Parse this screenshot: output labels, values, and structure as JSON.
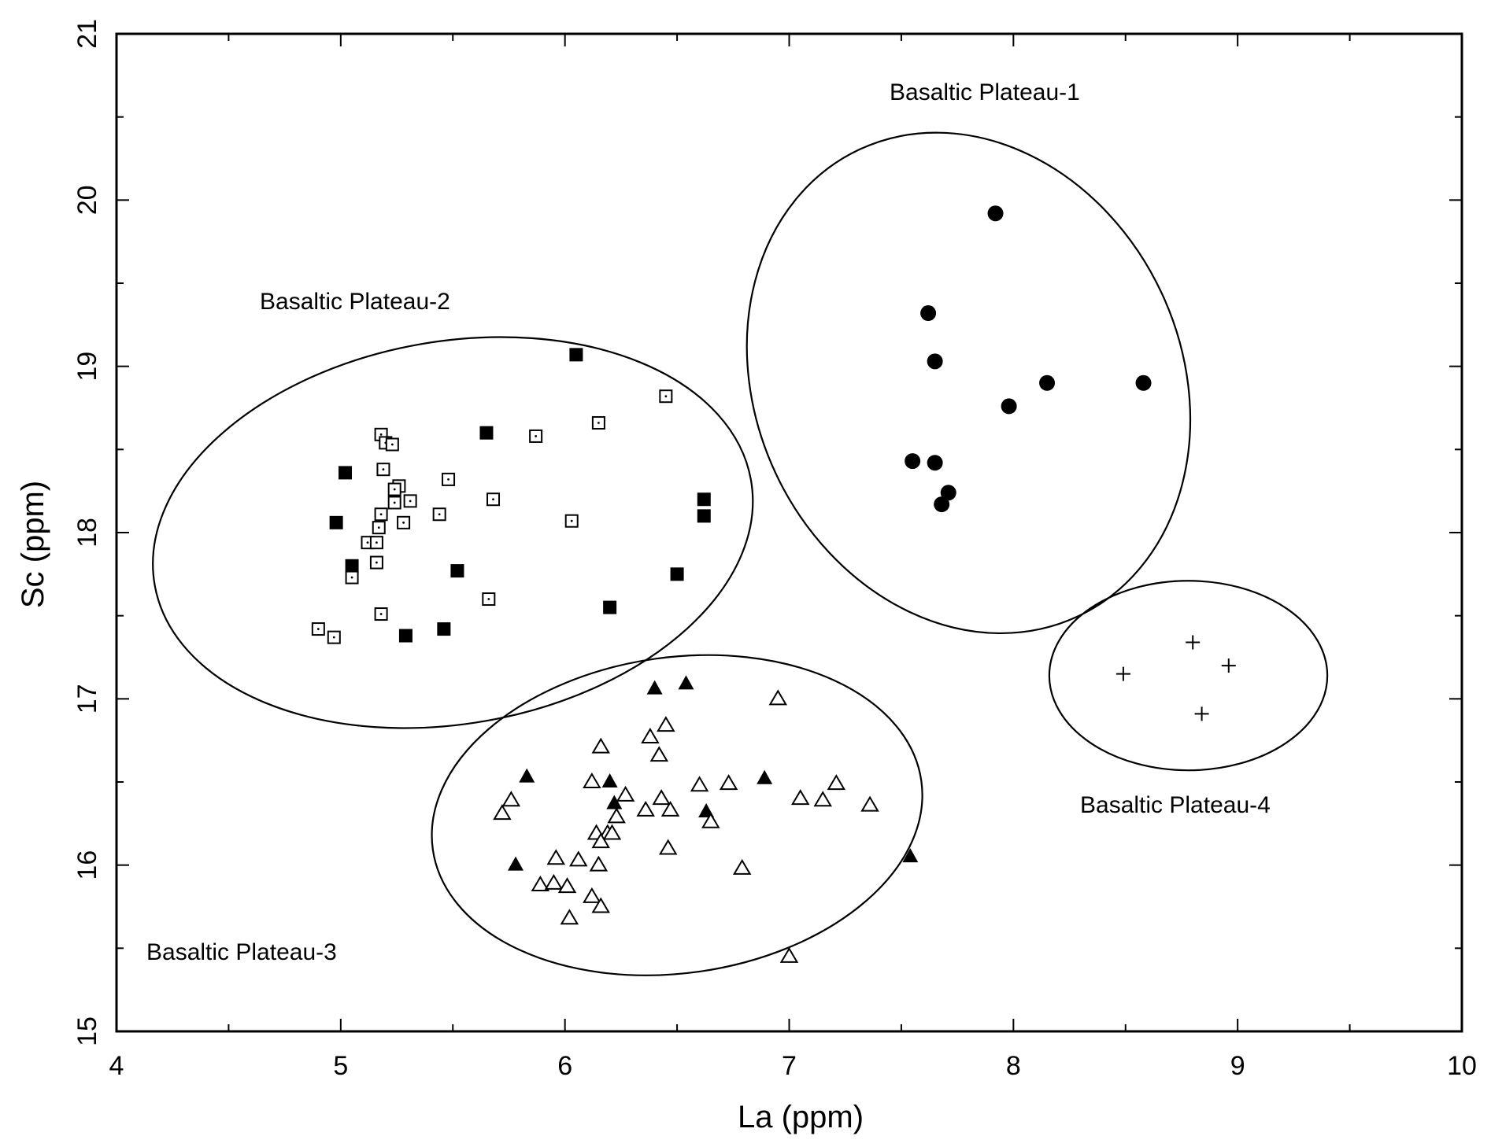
{
  "chart_data": {
    "type": "scatter",
    "xlabel": "La (ppm)",
    "ylabel": "Sc (ppm)",
    "xlim": [
      4,
      10
    ],
    "ylim": [
      15,
      21
    ],
    "xticks": [
      "4",
      "5",
      "6",
      "7",
      "8",
      "9",
      "10"
    ],
    "yticks": [
      "15",
      "16",
      "17",
      "18",
      "19",
      "20",
      "21"
    ],
    "grid": false,
    "legend": "none",
    "regions": [
      {
        "label": "Basaltic Plateau-1",
        "center": [
          7.8,
          18.9
        ],
        "radius_x": 0.95,
        "radius_y": 1.55,
        "rotation_deg": -25
      },
      {
        "label": "Basaltic Plateau-2",
        "center": [
          5.5,
          18.0
        ],
        "radius_x": 1.35,
        "radius_y": 1.15,
        "rotation_deg": -10
      },
      {
        "label": "Basaltic Plateau-3",
        "center": [
          6.5,
          16.3
        ],
        "radius_x": 1.1,
        "radius_y": 0.95,
        "rotation_deg": -8
      },
      {
        "label": "Basaltic Plateau-4",
        "center": [
          8.78,
          17.14
        ],
        "radius_x": 0.62,
        "radius_y": 0.57,
        "rotation_deg": 0
      }
    ],
    "series": [
      {
        "marker": "filled-circle",
        "region": "Basaltic Plateau-1",
        "points": [
          [
            7.92,
            19.92
          ],
          [
            7.62,
            19.32
          ],
          [
            7.65,
            19.03
          ],
          [
            8.15,
            18.9
          ],
          [
            8.58,
            18.9
          ],
          [
            7.98,
            18.76
          ],
          [
            7.55,
            18.43
          ],
          [
            7.65,
            18.42
          ],
          [
            7.71,
            18.24
          ],
          [
            7.68,
            18.17
          ]
        ]
      },
      {
        "marker": "filled-square",
        "region": "Basaltic Plateau-2",
        "points": [
          [
            6.05,
            19.07
          ],
          [
            5.65,
            18.6
          ],
          [
            5.02,
            18.36
          ],
          [
            6.62,
            18.2
          ],
          [
            6.62,
            18.1
          ],
          [
            4.98,
            18.06
          ],
          [
            5.05,
            17.8
          ],
          [
            5.52,
            17.77
          ],
          [
            6.5,
            17.75
          ],
          [
            6.2,
            17.55
          ],
          [
            5.46,
            17.42
          ],
          [
            5.29,
            17.38
          ]
        ]
      },
      {
        "marker": "open-square",
        "region": "Basaltic Plateau-2",
        "points": [
          [
            6.45,
            18.82
          ],
          [
            6.15,
            18.66
          ],
          [
            5.87,
            18.58
          ],
          [
            5.18,
            18.59
          ],
          [
            5.2,
            18.54
          ],
          [
            5.23,
            18.53
          ],
          [
            5.19,
            18.38
          ],
          [
            5.48,
            18.32
          ],
          [
            5.26,
            18.28
          ],
          [
            5.24,
            18.26
          ],
          [
            5.24,
            18.18
          ],
          [
            5.31,
            18.19
          ],
          [
            5.68,
            18.2
          ],
          [
            5.44,
            18.11
          ],
          [
            5.18,
            18.11
          ],
          [
            6.03,
            18.07
          ],
          [
            5.17,
            18.03
          ],
          [
            5.28,
            18.06
          ],
          [
            5.12,
            17.94
          ],
          [
            5.16,
            17.94
          ],
          [
            5.16,
            17.82
          ],
          [
            5.05,
            17.73
          ],
          [
            5.66,
            17.6
          ],
          [
            5.18,
            17.51
          ],
          [
            4.9,
            17.42
          ],
          [
            4.97,
            17.37
          ]
        ]
      },
      {
        "marker": "filled-triangle",
        "region": "Basaltic Plateau-3",
        "points": [
          [
            6.54,
            17.09
          ],
          [
            6.4,
            17.06
          ],
          [
            5.83,
            16.53
          ],
          [
            6.2,
            16.5
          ],
          [
            6.89,
            16.52
          ],
          [
            6.22,
            16.37
          ],
          [
            6.63,
            16.32
          ],
          [
            5.78,
            16.0
          ],
          [
            7.54,
            16.05
          ]
        ]
      },
      {
        "marker": "open-triangle",
        "region": "Basaltic Plateau-3",
        "points": [
          [
            6.95,
            17.0
          ],
          [
            6.45,
            16.84
          ],
          [
            6.38,
            16.77
          ],
          [
            6.16,
            16.71
          ],
          [
            6.42,
            16.66
          ],
          [
            6.12,
            16.5
          ],
          [
            6.6,
            16.48
          ],
          [
            6.73,
            16.49
          ],
          [
            7.21,
            16.49
          ],
          [
            6.27,
            16.42
          ],
          [
            6.43,
            16.4
          ],
          [
            7.05,
            16.4
          ],
          [
            7.15,
            16.39
          ],
          [
            7.36,
            16.36
          ],
          [
            5.76,
            16.39
          ],
          [
            5.72,
            16.31
          ],
          [
            6.47,
            16.33
          ],
          [
            6.36,
            16.33
          ],
          [
            6.23,
            16.29
          ],
          [
            6.65,
            16.26
          ],
          [
            6.14,
            16.19
          ],
          [
            6.19,
            16.19
          ],
          [
            6.21,
            16.19
          ],
          [
            6.16,
            16.14
          ],
          [
            6.46,
            16.1
          ],
          [
            5.96,
            16.04
          ],
          [
            6.06,
            16.03
          ],
          [
            6.15,
            16.0
          ],
          [
            6.79,
            15.98
          ],
          [
            5.89,
            15.88
          ],
          [
            5.95,
            15.89
          ],
          [
            6.01,
            15.87
          ],
          [
            6.12,
            15.81
          ],
          [
            6.16,
            15.75
          ],
          [
            6.02,
            15.68
          ],
          [
            7.0,
            15.45
          ]
        ]
      },
      {
        "marker": "plus",
        "region": "Basaltic Plateau-4",
        "points": [
          [
            8.8,
            17.34
          ],
          [
            8.96,
            17.2
          ],
          [
            8.49,
            17.15
          ],
          [
            8.84,
            16.91
          ]
        ]
      }
    ]
  },
  "labels": {
    "plateau1": "Basaltic Plateau-1",
    "plateau2": "Basaltic Plateau-2",
    "plateau3": "Basaltic Plateau-3",
    "plateau4": "Basaltic Plateau-4",
    "xlabel": "La (ppm)",
    "ylabel": "Sc (ppm)"
  }
}
